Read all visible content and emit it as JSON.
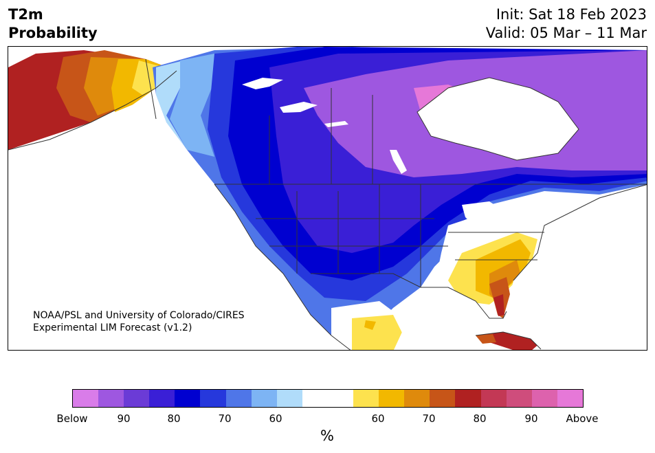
{
  "header": {
    "title_line1": "T2m",
    "title_line2": "Probability",
    "init": "Init: Sat 18 Feb 2023",
    "valid": "Valid: 05 Mar – 11 Mar"
  },
  "credit": {
    "line1": "NOAA/PSL and University of Colorado/CIRES",
    "line2": "Experimental LIM Forecast (v1.2)"
  },
  "legend": {
    "colors": [
      "#d97ce9",
      "#9e57e0",
      "#6b3bd6",
      "#3a1fd6",
      "#0000d0",
      "#2638dc",
      "#4f76e8",
      "#7db4f4",
      "#b0dcfa",
      "#ffffff",
      "#ffffff",
      "#fde24e",
      "#f2b800",
      "#df8a0c",
      "#c75518",
      "#b02121",
      "#c33855",
      "#cf4d7c",
      "#dd62ad",
      "#e678d8"
    ],
    "tick_labels": [
      "Below",
      "90",
      "80",
      "70",
      "60",
      "60",
      "70",
      "80",
      "90",
      "Above"
    ],
    "unit": "%"
  },
  "map": {
    "colors": {
      "below_90": "#9e57e0",
      "below_80": "#3a1fd6",
      "below_75": "#0000d0",
      "below_70": "#2638dc",
      "below_65": "#4f76e8",
      "below_60": "#7db4f4",
      "below_55": "#b0dcfa",
      "above_55": "#fde24e",
      "above_60": "#f2b800",
      "above_65": "#df8a0c",
      "above_70": "#c75518",
      "above_75": "#b02121",
      "above_95": "#e678d8"
    }
  }
}
